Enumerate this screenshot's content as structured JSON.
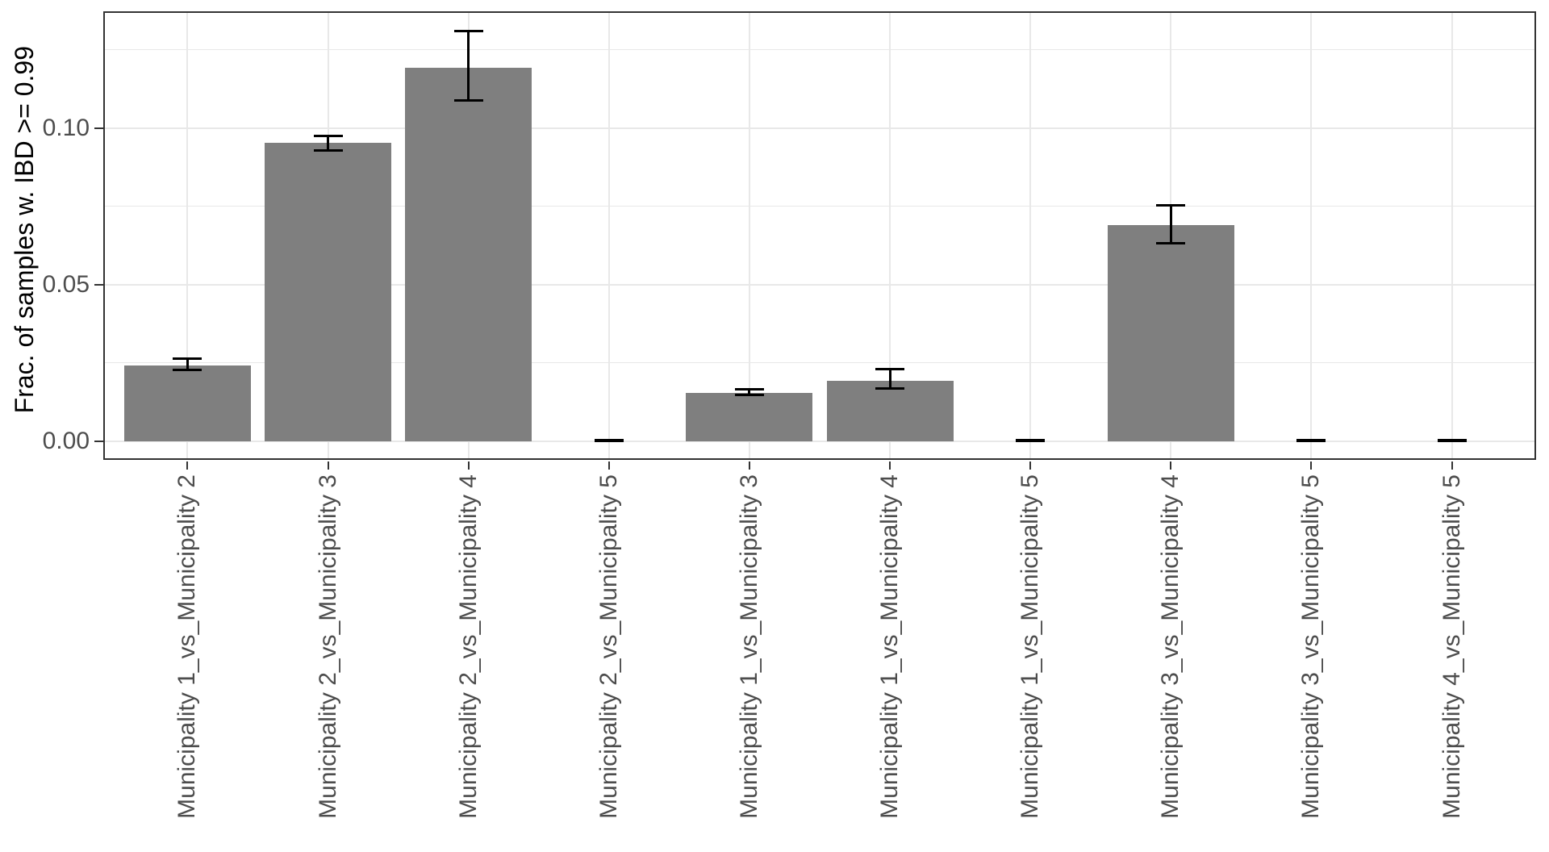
{
  "chart_data": {
    "type": "bar",
    "title": "",
    "xlabel": "",
    "ylabel": "Frac. of samples w. IBD >= 0.99",
    "categories": [
      "Municipality 1_vs_Municipality 2",
      "Municipality 2_vs_Municipality 3",
      "Municipality 2_vs_Municipality 4",
      "Municipality 2_vs_Municipality 5",
      "Municipality 1_vs_Municipality 3",
      "Municipality 1_vs_Municipality 4",
      "Municipality 1_vs_Municipality 5",
      "Municipality 3_vs_Municipality 4",
      "Municipality 3_vs_Municipality 5",
      "Municipality 4_vs_Municipality 5"
    ],
    "values": [
      0.0242,
      0.0953,
      0.1193,
      0,
      0.0155,
      0.0194,
      0,
      0.0691,
      0,
      0
    ],
    "error_low": [
      0.0228,
      0.093,
      0.109,
      0.0,
      0.0147,
      0.0168,
      0.0,
      0.0634,
      0.0,
      0.0
    ],
    "error_high": [
      0.0263,
      0.0975,
      0.131,
      0.0005,
      0.0166,
      0.023,
      0.0005,
      0.0753,
      0.0005,
      0.0005
    ],
    "y_ticks": [
      "0.00",
      "0.05",
      "0.10"
    ],
    "y_tick_values": [
      0,
      0.05,
      0.1
    ],
    "y_minor_values": [
      0.025,
      0.075,
      0.125
    ],
    "ylim": [
      -0.00593,
      0.13737
    ],
    "grid": true,
    "legend": false,
    "bar_color": "#7f7f7f",
    "error_color": "#000000",
    "panel_border_color": "#333333",
    "gridline_color": "#e8e8e8",
    "axis_text_color": "#4d4d4d"
  }
}
